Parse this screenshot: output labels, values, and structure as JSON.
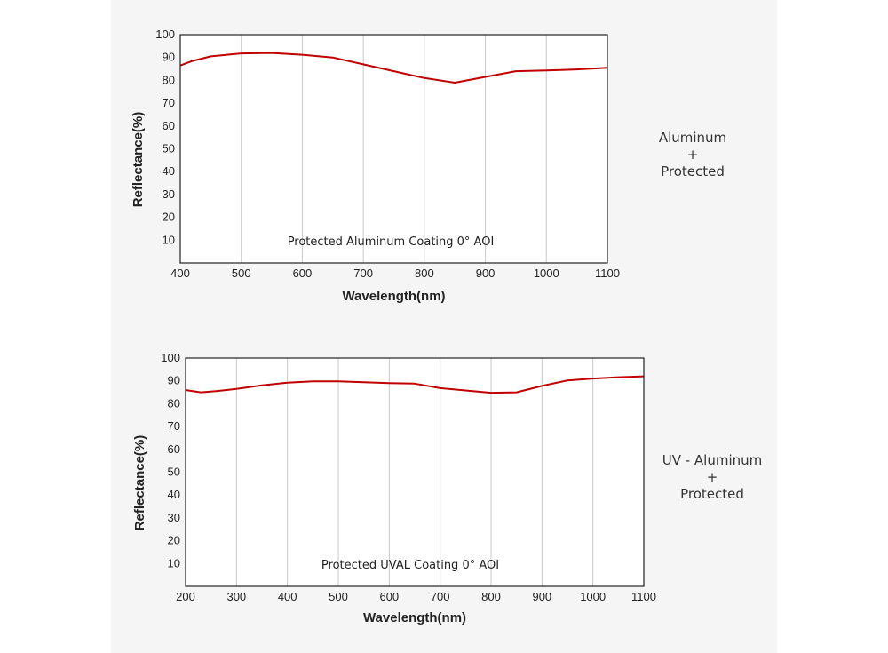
{
  "colors": {
    "curve": "#c00000",
    "grid": "#c8c8c8",
    "frame": "#222222",
    "plot_bg": "#ffffff",
    "panel_bg": "#f5f5f5"
  },
  "side_labels": [
    {
      "line1": "Aluminum",
      "line2": "+",
      "line3": "Protected"
    },
    {
      "line1": "UV - Aluminum",
      "line2": "+",
      "line3": "Protected"
    }
  ],
  "chart_data": [
    {
      "type": "line",
      "annotation": "Protected Aluminum Coating  0°  AOI",
      "xlabel": "Wavelength(nm)",
      "ylabel": "Reflectance(%)",
      "xlim": [
        400,
        1100
      ],
      "ylim": [
        0,
        100
      ],
      "xticks": [
        400,
        500,
        600,
        700,
        800,
        900,
        1000,
        1100
      ],
      "yticks": [
        10,
        20,
        30,
        40,
        50,
        60,
        70,
        80,
        90,
        100
      ],
      "grid": "vertical",
      "series": [
        {
          "x": [
            400,
            420,
            450,
            500,
            550,
            600,
            650,
            700,
            750,
            800,
            850,
            900,
            950,
            1000,
            1050,
            1100
          ],
          "y": [
            86.5,
            88.5,
            90.5,
            91.8,
            92.0,
            91.2,
            90.0,
            87.0,
            84.0,
            81.0,
            79.0,
            81.5,
            84.0,
            84.3,
            84.8,
            85.5
          ]
        }
      ]
    },
    {
      "type": "line",
      "annotation": "Protected UVAL Coating  0°  AOI",
      "xlabel": "Wavelength(nm)",
      "ylabel": "Reflectance(%)",
      "xlim": [
        200,
        1100
      ],
      "ylim": [
        0,
        100
      ],
      "xticks": [
        200,
        300,
        400,
        500,
        600,
        700,
        800,
        900,
        1000,
        1100
      ],
      "yticks": [
        10,
        20,
        30,
        40,
        50,
        60,
        70,
        80,
        90,
        100
      ],
      "grid": "vertical",
      "series": [
        {
          "x": [
            200,
            230,
            260,
            300,
            350,
            400,
            450,
            500,
            550,
            600,
            650,
            700,
            750,
            800,
            850,
            900,
            950,
            1000,
            1050,
            1100
          ],
          "y": [
            86.0,
            85.0,
            85.5,
            86.5,
            88.0,
            89.2,
            89.8,
            89.8,
            89.4,
            89.0,
            88.8,
            86.8,
            85.8,
            84.8,
            85.0,
            87.8,
            90.2,
            91.0,
            91.6,
            92.0
          ]
        }
      ]
    }
  ]
}
